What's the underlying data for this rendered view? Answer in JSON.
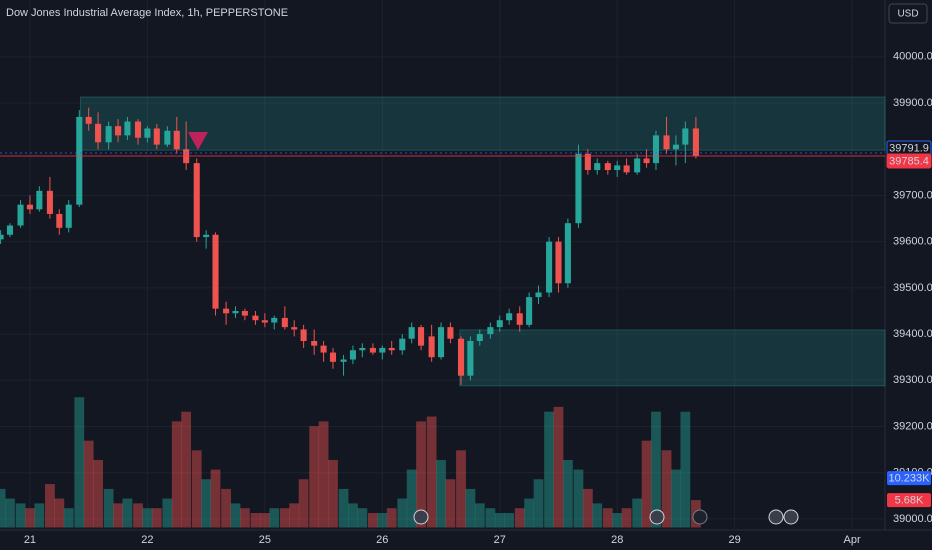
{
  "chart_data": {
    "type": "candlestick",
    "title": "Dow Jones Industrial Average Index, 1h, PEPPERSTONE",
    "currency": "USD",
    "up_color": "#26a69a",
    "down_color": "#ef5350",
    "grid": true,
    "x": [
      -0.25,
      -0.17,
      -0.08,
      0,
      0.08,
      0.17,
      0.25,
      0.33,
      0.42,
      0.5,
      0.58,
      0.67,
      0.75,
      0.83,
      0.92,
      1,
      1.08,
      1.17,
      1.25,
      1.33,
      1.42,
      1.5,
      1.58,
      1.67,
      1.75,
      1.83,
      1.92,
      2,
      2.08,
      2.17,
      2.25,
      2.33,
      2.42,
      2.5,
      2.58,
      2.67,
      2.75,
      2.83,
      2.92,
      3,
      3.08,
      3.17,
      3.25,
      3.33,
      3.42,
      3.5,
      3.58,
      3.67,
      3.75,
      3.83,
      3.92,
      4,
      4.08,
      4.17,
      4.25,
      4.33,
      4.42,
      4.5,
      4.58,
      4.67,
      4.75,
      4.83,
      4.92,
      5,
      5.08,
      5.17,
      5.25,
      5.33,
      5.42,
      5.5,
      5.58,
      5.67
    ],
    "ohlc": [
      [
        39605,
        39625,
        39595,
        39615
      ],
      [
        39615,
        39640,
        39610,
        39635
      ],
      [
        39635,
        39690,
        39630,
        39680
      ],
      [
        39680,
        39700,
        39660,
        39670
      ],
      [
        39670,
        39720,
        39665,
        39710
      ],
      [
        39710,
        39740,
        39650,
        39660
      ],
      [
        39660,
        39670,
        39615,
        39630
      ],
      [
        39630,
        39690,
        39620,
        39680
      ],
      [
        39680,
        39885,
        39675,
        39870
      ],
      [
        39870,
        39890,
        39840,
        39855
      ],
      [
        39855,
        39880,
        39800,
        39815
      ],
      [
        39815,
        39860,
        39800,
        39850
      ],
      [
        39850,
        39865,
        39815,
        39830
      ],
      [
        39830,
        39870,
        39820,
        39860
      ],
      [
        39860,
        39865,
        39810,
        39825
      ],
      [
        39825,
        39850,
        39815,
        39845
      ],
      [
        39845,
        39855,
        39800,
        39810
      ],
      [
        39810,
        39850,
        39805,
        39840
      ],
      [
        39840,
        39870,
        39790,
        39800
      ],
      [
        39800,
        39860,
        39755,
        39770
      ],
      [
        39770,
        39780,
        39600,
        39610
      ],
      [
        39610,
        39625,
        39585,
        39615
      ],
      [
        39615,
        39620,
        39440,
        39455
      ],
      [
        39455,
        39470,
        39420,
        39445
      ],
      [
        39445,
        39460,
        39435,
        39450
      ],
      [
        39450,
        39455,
        39430,
        39440
      ],
      [
        39440,
        39450,
        39420,
        39430
      ],
      [
        39430,
        39445,
        39415,
        39425
      ],
      [
        39425,
        39440,
        39410,
        39435
      ],
      [
        39435,
        39460,
        39410,
        39415
      ],
      [
        39415,
        39430,
        39395,
        39410
      ],
      [
        39410,
        39420,
        39370,
        39385
      ],
      [
        39385,
        39410,
        39355,
        39375
      ],
      [
        39375,
        39385,
        39340,
        39360
      ],
      [
        39360,
        39370,
        39325,
        39340
      ],
      [
        39340,
        39355,
        39310,
        39345
      ],
      [
        39345,
        39375,
        39335,
        39365
      ],
      [
        39365,
        39380,
        39350,
        39370
      ],
      [
        39370,
        39380,
        39355,
        39360
      ],
      [
        39360,
        39375,
        39345,
        39370
      ],
      [
        39370,
        39385,
        39355,
        39365
      ],
      [
        39365,
        39400,
        39355,
        39390
      ],
      [
        39390,
        39425,
        39380,
        39415
      ],
      [
        39415,
        39420,
        39365,
        39375
      ],
      [
        39395,
        39420,
        39340,
        39350
      ],
      [
        39350,
        39425,
        39345,
        39415
      ],
      [
        39415,
        39425,
        39380,
        39390
      ],
      [
        39390,
        39395,
        39290,
        39310
      ],
      [
        39310,
        39395,
        39300,
        39385
      ],
      [
        39385,
        39410,
        39375,
        39400
      ],
      [
        39400,
        39425,
        39390,
        39415
      ],
      [
        39415,
        39440,
        39405,
        39430
      ],
      [
        39430,
        39455,
        39420,
        39445
      ],
      [
        39445,
        39460,
        39405,
        39420
      ],
      [
        39420,
        39490,
        39415,
        39480
      ],
      [
        39480,
        39505,
        39465,
        39490
      ],
      [
        39490,
        39610,
        39480,
        39600
      ],
      [
        39600,
        39610,
        39490,
        39510
      ],
      [
        39510,
        39650,
        39500,
        39640
      ],
      [
        39640,
        39810,
        39630,
        39790
      ],
      [
        39790,
        39800,
        39745,
        39755
      ],
      [
        39755,
        39780,
        39745,
        39770
      ],
      [
        39770,
        39775,
        39745,
        39755
      ],
      [
        39755,
        39775,
        39740,
        39765
      ],
      [
        39765,
        39780,
        39745,
        39750
      ],
      [
        39750,
        39790,
        39745,
        39780
      ],
      [
        39780,
        39800,
        39760,
        39770
      ],
      [
        39770,
        39840,
        39755,
        39830
      ],
      [
        39830,
        39870,
        39790,
        39800
      ],
      [
        39800,
        39830,
        39765,
        39810
      ],
      [
        39810,
        39860,
        39770,
        39845
      ],
      [
        39845,
        39870,
        39780,
        39785.4
      ]
    ],
    "volume": [
      8,
      6,
      5,
      4,
      5,
      9,
      6,
      4,
      27,
      18,
      14,
      8,
      5,
      6,
      5,
      4,
      4,
      6,
      22,
      24,
      16,
      10,
      12,
      8,
      5,
      4,
      3,
      3,
      4,
      4,
      5,
      10,
      21,
      22,
      14,
      8,
      5,
      4,
      3,
      3,
      4,
      6,
      12,
      22,
      23,
      14,
      10,
      16,
      8,
      5,
      4,
      3,
      3,
      4,
      6,
      10,
      24,
      25,
      14,
      12,
      8,
      5,
      4,
      3,
      4,
      6,
      18,
      24,
      16,
      12,
      24,
      5.68
    ],
    "xlim": [
      -0.255,
      7.28
    ],
    "xticks": [
      {
        "value": 0,
        "label": "21"
      },
      {
        "value": 1,
        "label": "22"
      },
      {
        "value": 2,
        "label": "25"
      },
      {
        "value": 3,
        "label": "26"
      },
      {
        "value": 4,
        "label": "27"
      },
      {
        "value": 5,
        "label": "28"
      },
      {
        "value": 6,
        "label": "29"
      },
      {
        "value": 7,
        "label": "Apr"
      }
    ],
    "ylim": [
      38976,
      40123
    ],
    "yticks": [
      {
        "value": 39000,
        "label": "39000.0"
      },
      {
        "value": 39100,
        "label": "39100.0"
      },
      {
        "value": 39200,
        "label": "39200.0"
      },
      {
        "value": 39300,
        "label": "39300.0"
      },
      {
        "value": 39400,
        "label": "39400.0"
      },
      {
        "value": 39500,
        "label": "39500.0"
      },
      {
        "value": 39600,
        "label": "39600.0"
      },
      {
        "value": 39700,
        "label": "39700.0"
      },
      {
        "value": 39900,
        "label": "39900.0"
      },
      {
        "value": 40000,
        "label": "40000.0"
      }
    ],
    "y2lim": [
      0,
      28.5
    ],
    "zones": [
      {
        "x0": 0.43,
        "y0": 39798,
        "y1": 39913
      },
      {
        "x0": 3.66,
        "y0": 39288,
        "y1": 39409
      }
    ],
    "price_labels": [
      {
        "value": 39791.9,
        "color": "#2962ff"
      },
      {
        "value": 39785.4,
        "color": "#f23645"
      }
    ],
    "volume_labels": [
      {
        "value": 10.233,
        "label": "10.233K",
        "color": "#2962ff"
      },
      {
        "value": 5.68,
        "label": "5.68K",
        "color": "#f23645"
      }
    ]
  }
}
